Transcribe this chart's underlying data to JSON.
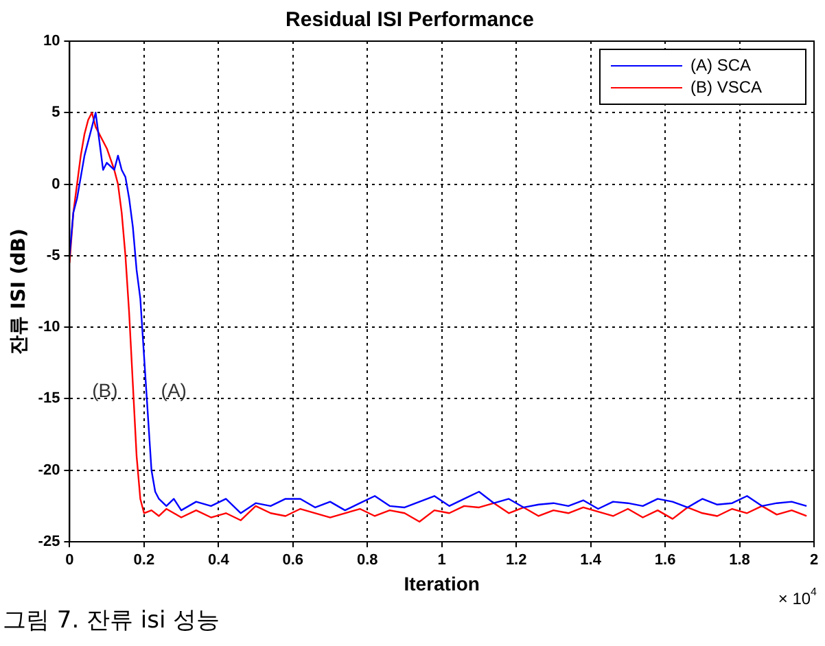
{
  "chart_data": {
    "type": "line",
    "title": "Residual ISI Performance",
    "xlabel": "Iteration",
    "ylabel": "잔류 ISI (dB)",
    "xlim": [
      0,
      2
    ],
    "xticks": [
      0,
      0.2,
      0.4,
      0.6,
      0.8,
      1,
      1.2,
      1.4,
      1.6,
      1.8,
      2
    ],
    "ylim": [
      -25,
      10
    ],
    "yticks": [
      -25,
      -20,
      -15,
      -10,
      -5,
      0,
      5,
      10
    ],
    "grid": true,
    "legend": "top right",
    "line_style": "solid",
    "marker": "none",
    "series": [
      {
        "name": "(A) SCA",
        "color": "#0000ff",
        "x": [
          0,
          0.01,
          0.02,
          0.04,
          0.06,
          0.07,
          0.08,
          0.09,
          0.1,
          0.12,
          0.13,
          0.14,
          0.15,
          0.16,
          0.17,
          0.18,
          0.19,
          0.2,
          0.21,
          0.22,
          0.23,
          0.24,
          0.26,
          0.28,
          0.3,
          0.34,
          0.38,
          0.42,
          0.46,
          0.5,
          0.54,
          0.58,
          0.62,
          0.66,
          0.7,
          0.74,
          0.78,
          0.82,
          0.86,
          0.9,
          0.94,
          0.98,
          1.02,
          1.06,
          1.1,
          1.14,
          1.18,
          1.22,
          1.26,
          1.3,
          1.34,
          1.38,
          1.42,
          1.46,
          1.5,
          1.54,
          1.58,
          1.62,
          1.66,
          1.7,
          1.74,
          1.78,
          1.82,
          1.86,
          1.9,
          1.94,
          1.98
        ],
        "values": [
          -5,
          -2,
          -1,
          2,
          4,
          5,
          3,
          1,
          1.5,
          1,
          2,
          1,
          0.5,
          -1,
          -3,
          -6,
          -8,
          -12,
          -16,
          -20,
          -21.5,
          -22,
          -22.5,
          -22,
          -22.8,
          -22.2,
          -22.5,
          -22,
          -23,
          -22.3,
          -22.5,
          -22,
          -22,
          -22.6,
          -22.2,
          -22.8,
          -22.3,
          -21.8,
          -22.5,
          -22.6,
          -22.2,
          -21.8,
          -22.5,
          -22,
          -21.5,
          -22.3,
          -22,
          -22.6,
          -22.4,
          -22.3,
          -22.5,
          -22.1,
          -22.7,
          -22.2,
          -22.3,
          -22.5,
          -22,
          -22.2,
          -22.6,
          -22,
          -22.4,
          -22.3,
          -21.8,
          -22.5,
          -22.3,
          -22.2,
          -22.5
        ]
      },
      {
        "name": "(B) VSCA",
        "color": "#ff0000",
        "x": [
          0,
          0.01,
          0.02,
          0.03,
          0.04,
          0.05,
          0.06,
          0.07,
          0.08,
          0.1,
          0.12,
          0.13,
          0.14,
          0.15,
          0.16,
          0.17,
          0.18,
          0.19,
          0.2,
          0.22,
          0.24,
          0.26,
          0.28,
          0.3,
          0.34,
          0.38,
          0.42,
          0.46,
          0.5,
          0.54,
          0.58,
          0.62,
          0.66,
          0.7,
          0.74,
          0.78,
          0.82,
          0.86,
          0.9,
          0.94,
          0.98,
          1.02,
          1.06,
          1.1,
          1.14,
          1.18,
          1.22,
          1.26,
          1.3,
          1.34,
          1.38,
          1.42,
          1.46,
          1.5,
          1.54,
          1.58,
          1.62,
          1.66,
          1.7,
          1.74,
          1.78,
          1.82,
          1.86,
          1.9,
          1.94,
          1.98
        ],
        "values": [
          -5.5,
          -2,
          0,
          2,
          3.5,
          4.5,
          5,
          4,
          3.5,
          2.5,
          1,
          0,
          -2,
          -5,
          -9,
          -14,
          -19,
          -22,
          -23,
          -22.8,
          -23.2,
          -22.7,
          -23,
          -23.3,
          -22.8,
          -23.3,
          -23,
          -23.5,
          -22.5,
          -23,
          -23.2,
          -22.7,
          -23,
          -23.3,
          -23,
          -22.7,
          -23.2,
          -22.8,
          -23,
          -23.6,
          -22.8,
          -23,
          -22.5,
          -22.6,
          -22.3,
          -23,
          -22.6,
          -23.2,
          -22.8,
          -23,
          -22.6,
          -22.9,
          -23.2,
          -22.7,
          -23.3,
          -22.8,
          -23.4,
          -22.6,
          -23,
          -23.2,
          -22.7,
          -23,
          -22.5,
          -23.1,
          -22.8,
          -23.2
        ]
      }
    ],
    "annotations": [
      "(A)",
      "(B)",
      "× 10$^{4}$",
      "그림 7. 잔류 isi 성능"
    ]
  }
}
